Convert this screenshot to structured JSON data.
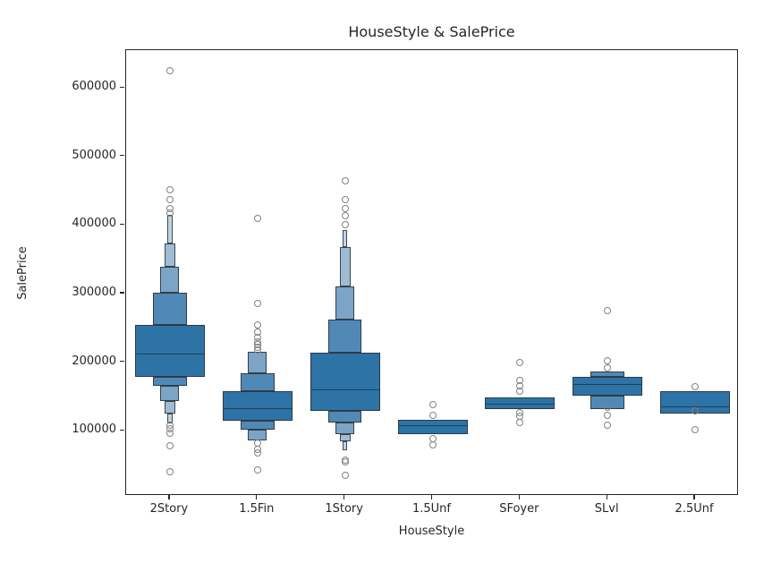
{
  "title": "HouseStyle & SalePrice",
  "chart_data": {
    "type": "boxen",
    "title": "HouseStyle & SalePrice",
    "xlabel": "HouseStyle",
    "ylabel": "SalePrice",
    "ylim": [
      5000,
      655000
    ],
    "yticks": [
      100000,
      200000,
      300000,
      400000,
      500000,
      600000
    ],
    "categories": [
      "2Story",
      "1.5Fin",
      "1Story",
      "1.5Unf",
      "SFoyer",
      "SLvl",
      "2.5Unf"
    ],
    "grid": false,
    "legend": null,
    "colors": {
      "level_fills": [
        "#2e73a6",
        "#5189b6",
        "#7ba4c6",
        "#9fbcd5",
        "#c0d3e4"
      ],
      "median_line": "#1d4254",
      "box_edge": "#2a2f34",
      "outlier_edge": "#828282",
      "spine": "#262626"
    },
    "level_width_fractions": [
      1.0,
      0.48,
      0.27,
      0.155,
      0.07
    ],
    "groups": [
      {
        "category": "2Story",
        "median": 211500,
        "boxes": [
          {
            "lo": 179000,
            "hi": 254500,
            "depth": 0
          },
          {
            "lo": 254500,
            "hi": 301500,
            "depth": 1
          },
          {
            "lo": 165000,
            "hi": 179000,
            "depth": 1
          },
          {
            "lo": 301500,
            "hi": 339000,
            "depth": 2
          },
          {
            "lo": 143000,
            "hi": 165000,
            "depth": 2
          },
          {
            "lo": 339000,
            "hi": 373000,
            "depth": 3
          },
          {
            "lo": 125000,
            "hi": 143000,
            "depth": 3
          },
          {
            "lo": 373000,
            "hi": 414500,
            "depth": 4
          },
          {
            "lo": 110500,
            "hi": 125000,
            "depth": 4
          }
        ],
        "outliers": [
          625000,
          452000,
          437000,
          424000,
          417000,
          108000,
          103000,
          97000,
          78000,
          40000
        ]
      },
      {
        "category": "1.5Fin",
        "median": 131500,
        "boxes": [
          {
            "lo": 115000,
            "hi": 157500,
            "depth": 0
          },
          {
            "lo": 157500,
            "hi": 183500,
            "depth": 1
          },
          {
            "lo": 102000,
            "hi": 115000,
            "depth": 1
          },
          {
            "lo": 183500,
            "hi": 215000,
            "depth": 2
          },
          {
            "lo": 86000,
            "hi": 102000,
            "depth": 2
          }
        ],
        "outliers": [
          410000,
          286000,
          254000,
          244000,
          236000,
          230000,
          226000,
          222000,
          218000,
          82000,
          73000,
          67000,
          43000
        ]
      },
      {
        "category": "1Story",
        "median": 158500,
        "boxes": [
          {
            "lo": 129500,
            "hi": 214000,
            "depth": 0
          },
          {
            "lo": 214000,
            "hi": 262500,
            "depth": 1
          },
          {
            "lo": 112000,
            "hi": 129500,
            "depth": 1
          },
          {
            "lo": 262500,
            "hi": 311000,
            "depth": 2
          },
          {
            "lo": 95000,
            "hi": 112000,
            "depth": 2
          },
          {
            "lo": 311000,
            "hi": 367500,
            "depth": 3
          },
          {
            "lo": 84000,
            "hi": 95000,
            "depth": 3
          },
          {
            "lo": 367500,
            "hi": 392500,
            "depth": 4
          },
          {
            "lo": 71000,
            "hi": 84000,
            "depth": 4
          }
        ],
        "outliers": [
          464000,
          437000,
          424000,
          414000,
          401000,
          57000,
          54000,
          35000
        ]
      },
      {
        "category": "1.5Unf",
        "median": 106500,
        "boxes": [
          {
            "lo": 95000,
            "hi": 116500,
            "depth": 0
          }
        ],
        "outliers": [
          138000,
          123000,
          88000,
          79000
        ]
      },
      {
        "category": "SFoyer",
        "median": 138000,
        "boxes": [
          {
            "lo": 131500,
            "hi": 149000,
            "depth": 0
          }
        ],
        "outliers": [
          199000,
          173000,
          166000,
          158000,
          127000,
          121000,
          112000
        ]
      },
      {
        "category": "SLvl",
        "median": 166500,
        "boxes": [
          {
            "lo": 151000,
            "hi": 179000,
            "depth": 0
          },
          {
            "lo": 179000,
            "hi": 186000,
            "depth": 1
          },
          {
            "lo": 131500,
            "hi": 151000,
            "depth": 1
          }
        ],
        "outliers": [
          275000,
          202000,
          192000,
          134000,
          123000,
          108000
        ]
      },
      {
        "category": "2.5Unf",
        "median": 134000,
        "boxes": [
          {
            "lo": 125000,
            "hi": 157500,
            "depth": 0
          }
        ],
        "outliers": [
          164000,
          129000,
          102000
        ]
      }
    ]
  }
}
